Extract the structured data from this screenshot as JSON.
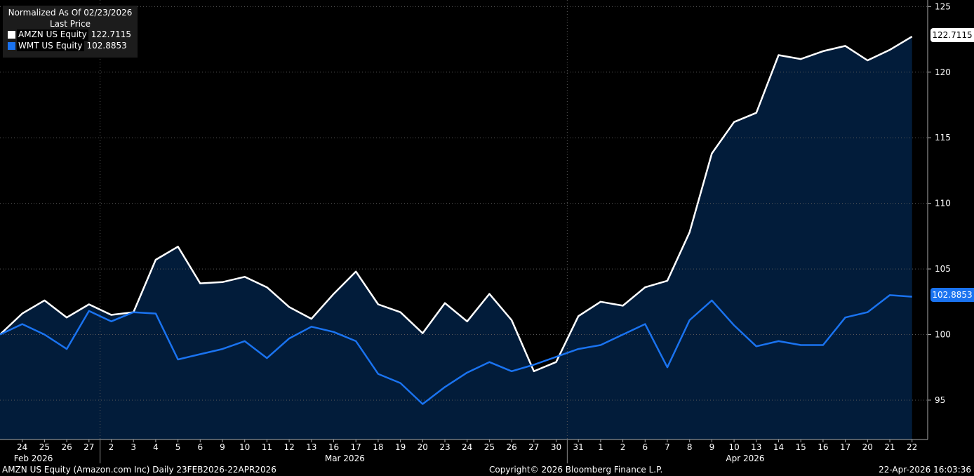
{
  "legend": {
    "header_line1": "Normalized As Of 02/23/2026",
    "header_line2": "Last Price"
  },
  "footer": {
    "left": "AMZN US Equity (Amazon.com Inc) Daily 23FEB2026-22APR2026",
    "center": "Copyright© 2026 Bloomberg Finance L.P.",
    "right": "22-Apr-2026 16:03:36"
  },
  "colors": {
    "background": "#000000",
    "area_fill": "#021c3a",
    "amzn_line": "#ffffff",
    "wmt_line": "#1a73f0"
  },
  "chart_data": {
    "type": "line",
    "x": [
      "2026-02-23",
      "2026-02-24",
      "2026-02-25",
      "2026-02-26",
      "2026-02-27",
      "2026-03-02",
      "2026-03-03",
      "2026-03-04",
      "2026-03-05",
      "2026-03-06",
      "2026-03-09",
      "2026-03-10",
      "2026-03-11",
      "2026-03-12",
      "2026-03-13",
      "2026-03-16",
      "2026-03-17",
      "2026-03-18",
      "2026-03-19",
      "2026-03-20",
      "2026-03-23",
      "2026-03-24",
      "2026-03-25",
      "2026-03-26",
      "2026-03-27",
      "2026-03-30",
      "2026-03-31",
      "2026-04-01",
      "2026-04-02",
      "2026-04-06",
      "2026-04-07",
      "2026-04-08",
      "2026-04-09",
      "2026-04-10",
      "2026-04-13",
      "2026-04-14",
      "2026-04-15",
      "2026-04-16",
      "2026-04-17",
      "2026-04-20",
      "2026-04-21",
      "2026-04-22"
    ],
    "x_tick_labels": [
      "24",
      "25",
      "26",
      "27",
      "2",
      "3",
      "4",
      "5",
      "6",
      "9",
      "10",
      "11",
      "12",
      "13",
      "16",
      "17",
      "18",
      "19",
      "20",
      "23",
      "24",
      "25",
      "26",
      "27",
      "30",
      "31",
      "1",
      "2",
      "6",
      "7",
      "8",
      "9",
      "10",
      "13",
      "14",
      "15",
      "16",
      "17",
      "20",
      "21",
      "22"
    ],
    "month_labels": [
      {
        "label": "Feb 2026",
        "at_index": 1.5
      },
      {
        "label": "Mar 2026",
        "at_index": 15.5
      },
      {
        "label": "Apr 2026",
        "at_index": 33.5
      }
    ],
    "series": [
      {
        "name": "AMZN US Equity",
        "last": "122.7115",
        "color": "#ffffff",
        "fill": true,
        "values": [
          100.0,
          101.6,
          102.6,
          101.3,
          102.3,
          101.5,
          101.7,
          105.7,
          106.7,
          103.9,
          104.0,
          104.4,
          103.6,
          102.1,
          101.2,
          103.1,
          104.8,
          102.3,
          101.7,
          100.1,
          102.4,
          101.0,
          103.1,
          101.1,
          97.2,
          97.9,
          101.4,
          102.5,
          102.2,
          103.6,
          104.1,
          107.8,
          113.8,
          116.2,
          116.9,
          121.3,
          121.0,
          121.6,
          122.0,
          120.9,
          121.7,
          122.7115
        ]
      },
      {
        "name": "WMT US Equity",
        "last": "102.8853",
        "color": "#1a73f0",
        "fill": false,
        "values": [
          100.0,
          100.8,
          100.0,
          98.9,
          101.8,
          101.0,
          101.7,
          101.6,
          98.1,
          98.5,
          98.9,
          99.5,
          98.2,
          99.7,
          100.6,
          100.2,
          99.5,
          97.0,
          96.3,
          94.7,
          96.0,
          97.1,
          97.9,
          97.2,
          97.7,
          98.3,
          98.9,
          99.2,
          100.0,
          100.8,
          97.5,
          101.1,
          102.6,
          100.7,
          99.1,
          99.5,
          99.2,
          99.2,
          101.3,
          101.7,
          103.0,
          102.8853
        ]
      }
    ],
    "y_ticks": [
      95,
      100,
      105,
      110,
      115,
      120,
      125
    ],
    "ylim": [
      92,
      125.5
    ],
    "grid": true,
    "legend_position": "top-left"
  }
}
